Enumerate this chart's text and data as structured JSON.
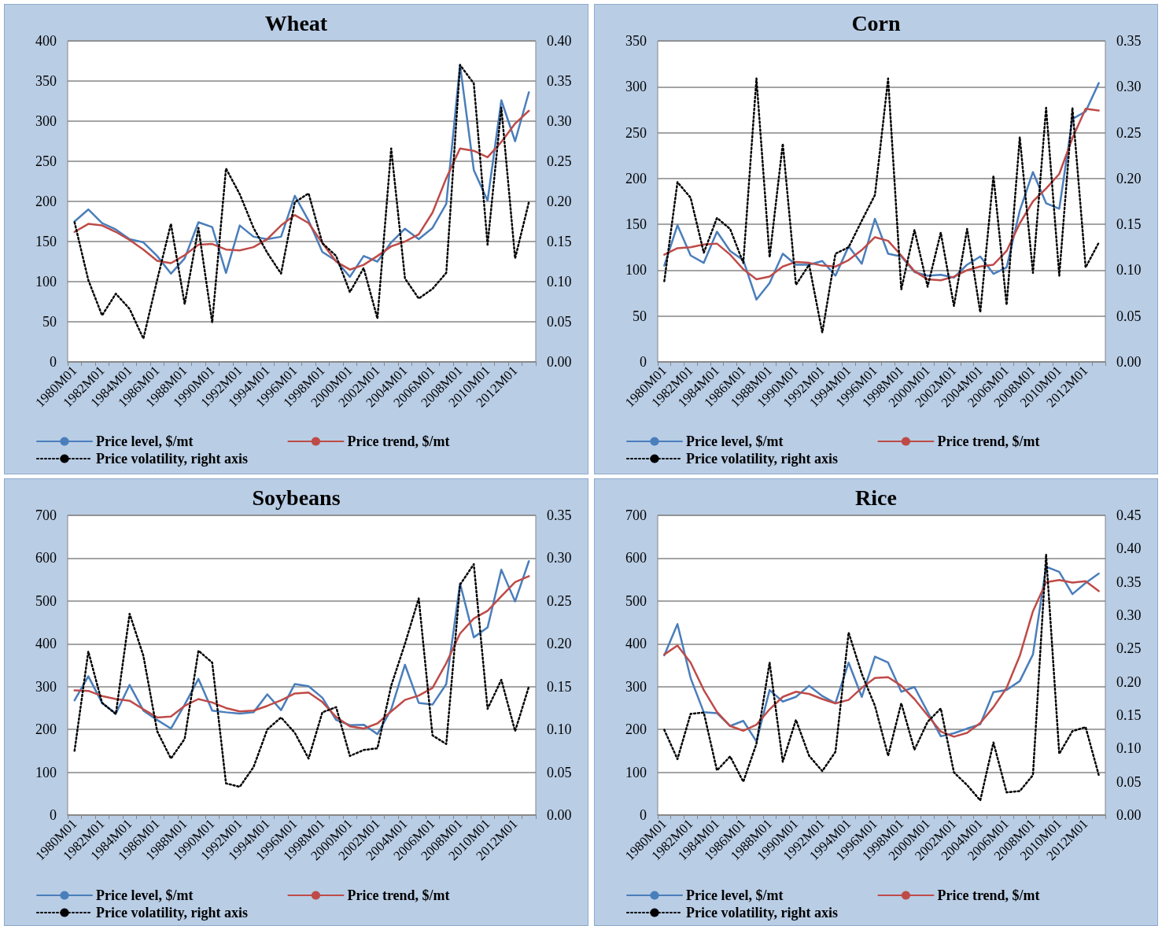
{
  "chart_data": [
    {
      "type": "line",
      "title": "Wheat",
      "categories": [
        "1980M01",
        null,
        "1982M01",
        null,
        "1984M01",
        null,
        "1986M01",
        null,
        "1988M01",
        null,
        "1990M01",
        null,
        "1992M01",
        null,
        "1994M01",
        null,
        "1996M01",
        null,
        "1998M01",
        null,
        "2000M01",
        null,
        "2002M01",
        null,
        "2004M01",
        null,
        "2006M01",
        null,
        "2008M01",
        null,
        "2010M01",
        null,
        "2012M01",
        null
      ],
      "ylim": [
        0,
        400
      ],
      "yticks": [
        0,
        50,
        100,
        150,
        200,
        250,
        300,
        350,
        400
      ],
      "y2lim": [
        0,
        0.4
      ],
      "y2ticks": [
        {
          "value": 0,
          "label": "0.00"
        },
        {
          "value": 0.05,
          "label": "0.05"
        },
        {
          "value": 0.1,
          "label": "0.10"
        },
        {
          "value": 0.15,
          "label": "0.15"
        },
        {
          "value": 0.2,
          "label": "0.20"
        },
        {
          "value": 0.25,
          "label": "0.25"
        },
        {
          "value": 0.3,
          "label": "0.30"
        },
        {
          "value": 0.35,
          "label": "0.35"
        },
        {
          "value": 0.4,
          "label": "0.40"
        }
      ],
      "grid": "y",
      "legend": "bottom",
      "marker": "none",
      "series": [
        {
          "name": "Price level, $/mt",
          "color": "#4a7ebb",
          "line_style": "solid",
          "values": [
            175,
            190,
            173,
            165,
            153,
            149,
            132,
            110,
            129,
            174,
            168,
            111,
            170,
            156,
            153,
            156,
            207,
            176,
            137,
            126,
            106,
            132,
            125,
            149,
            166,
            153,
            167,
            197,
            370,
            239,
            201,
            326,
            275,
            336
          ]
        },
        {
          "name": "Price trend, $/mt",
          "color": "#be4b48",
          "line_style": "solid",
          "values": [
            162,
            172,
            170,
            162,
            152,
            140,
            126,
            123,
            133,
            146,
            147,
            140,
            139,
            143,
            153,
            170,
            183,
            173,
            148,
            125,
            115,
            121,
            132,
            144,
            150,
            159,
            186,
            229,
            266,
            263,
            255,
            274,
            297,
            313
          ]
        },
        {
          "name": "Price volatility, right axis",
          "color": "#000000",
          "line_style": "dotted",
          "axis": "y2",
          "values": [
            0.174,
            0.102,
            0.058,
            0.085,
            0.066,
            0.029,
            0.102,
            0.172,
            0.072,
            0.167,
            0.049,
            0.241,
            0.209,
            0.167,
            0.136,
            0.11,
            0.199,
            0.21,
            0.148,
            0.132,
            0.087,
            0.117,
            0.054,
            0.266,
            0.104,
            0.079,
            0.091,
            0.111,
            0.37,
            0.347,
            0.146,
            0.317,
            0.129,
            0.199
          ]
        }
      ]
    },
    {
      "type": "line",
      "title": "Corn",
      "categories": [
        "1980M01",
        null,
        "1982M01",
        null,
        "1984M01",
        null,
        "1986M01",
        null,
        "1988M01",
        null,
        "1990M01",
        null,
        "1992M01",
        null,
        "1994M01",
        null,
        "1996M01",
        null,
        "1998M01",
        null,
        "2000M01",
        null,
        "2002M01",
        null,
        "2004M01",
        null,
        "2006M01",
        null,
        "2008M01",
        null,
        "2010M01",
        null,
        "2012M01",
        null
      ],
      "ylim": [
        0,
        350
      ],
      "yticks": [
        0,
        50,
        100,
        150,
        200,
        250,
        300,
        350
      ],
      "y2lim": [
        0,
        0.35
      ],
      "y2ticks": [
        {
          "value": 0,
          "label": "0.00"
        },
        {
          "value": 0.05,
          "label": "0.05"
        },
        {
          "value": 0.1,
          "label": "0.10"
        },
        {
          "value": 0.15,
          "label": "0.15"
        },
        {
          "value": 0.2,
          "label": "0.20"
        },
        {
          "value": 0.25,
          "label": "0.25"
        },
        {
          "value": 0.3,
          "label": "0.30"
        },
        {
          "value": 0.35,
          "label": "0.35"
        }
      ],
      "grid": "y",
      "legend": "bottom",
      "marker": "none",
      "series": [
        {
          "name": "Price level, $/mt",
          "color": "#4a7ebb",
          "line_style": "solid",
          "values": [
            105,
            149,
            116,
            108,
            142,
            121,
            111,
            68,
            86,
            118,
            106,
            106,
            110,
            94,
            126,
            107,
            156,
            118,
            115,
            98,
            94,
            95,
            92,
            106,
            115,
            96,
            103,
            165,
            207,
            173,
            167,
            265,
            273,
            304
          ]
        },
        {
          "name": "Price trend, $/mt",
          "color": "#be4b48",
          "line_style": "solid",
          "values": [
            117,
            124,
            125,
            128,
            129,
            117,
            101,
            90,
            93,
            104,
            109,
            108,
            105,
            104,
            111,
            122,
            136,
            132,
            116,
            99,
            90,
            89,
            93,
            100,
            104,
            106,
            121,
            151,
            175,
            189,
            205,
            244,
            276,
            274
          ]
        },
        {
          "name": "Price volatility, right axis",
          "color": "#000000",
          "line_style": "dotted",
          "axis": "y2",
          "values": [
            0.088,
            0.196,
            0.179,
            0.119,
            0.157,
            0.145,
            0.108,
            0.309,
            0.114,
            0.238,
            0.084,
            0.106,
            0.032,
            0.118,
            0.125,
            0.154,
            0.182,
            0.309,
            0.079,
            0.144,
            0.082,
            0.141,
            0.061,
            0.145,
            0.054,
            0.203,
            0.062,
            0.245,
            0.097,
            0.277,
            0.094,
            0.277,
            0.103,
            0.13
          ]
        }
      ]
    },
    {
      "type": "line",
      "title": "Soybeans",
      "categories": [
        "1980M01",
        null,
        "1982M01",
        null,
        "1984M01",
        null,
        "1986M01",
        null,
        "1988M01",
        null,
        "1990M01",
        null,
        "1992M01",
        null,
        "1994M01",
        null,
        "1996M01",
        null,
        "1998M01",
        null,
        "2000M01",
        null,
        "2002M01",
        null,
        "2004M01",
        null,
        "2006M01",
        null,
        "2008M01",
        null,
        "2010M01",
        null,
        "2012M01",
        null
      ],
      "ylim": [
        0,
        700
      ],
      "yticks": [
        0,
        100,
        200,
        300,
        400,
        500,
        600,
        700
      ],
      "y2lim": [
        0,
        0.35
      ],
      "y2ticks": [
        {
          "value": 0,
          "label": "0.00"
        },
        {
          "value": 0.05,
          "label": "0.05"
        },
        {
          "value": 0.1,
          "label": "0.10"
        },
        {
          "value": 0.15,
          "label": "0.15"
        },
        {
          "value": 0.2,
          "label": "0.20"
        },
        {
          "value": 0.25,
          "label": "0.25"
        },
        {
          "value": 0.3,
          "label": "0.30"
        },
        {
          "value": 0.35,
          "label": "0.35"
        }
      ],
      "grid": "y",
      "legend": "bottom",
      "marker": "none",
      "series": [
        {
          "name": "Price level, $/mt",
          "color": "#4a7ebb",
          "line_style": "solid",
          "values": [
            268,
            324,
            262,
            237,
            304,
            244,
            222,
            202,
            258,
            318,
            244,
            240,
            237,
            240,
            282,
            245,
            306,
            301,
            274,
            222,
            210,
            211,
            189,
            247,
            351,
            262,
            258,
            306,
            541,
            415,
            438,
            573,
            499,
            593
          ]
        },
        {
          "name": "Price trend, $/mt",
          "color": "#be4b48",
          "line_style": "solid",
          "values": [
            291,
            290,
            278,
            271,
            267,
            247,
            228,
            230,
            255,
            271,
            263,
            250,
            242,
            244,
            255,
            268,
            284,
            286,
            264,
            229,
            207,
            202,
            214,
            242,
            269,
            279,
            297,
            355,
            424,
            459,
            477,
            511,
            544,
            558
          ]
        },
        {
          "name": "Price volatility, right axis",
          "color": "#000000",
          "line_style": "dotted",
          "axis": "y2",
          "values": [
            0.075,
            0.191,
            0.131,
            0.118,
            0.235,
            0.186,
            0.098,
            0.066,
            0.089,
            0.192,
            0.178,
            0.037,
            0.033,
            0.056,
            0.1,
            0.114,
            0.096,
            0.066,
            0.12,
            0.126,
            0.069,
            0.076,
            0.078,
            0.151,
            0.2,
            0.253,
            0.093,
            0.083,
            0.269,
            0.293,
            0.124,
            0.158,
            0.098,
            0.15
          ]
        }
      ]
    },
    {
      "type": "line",
      "title": "Rice",
      "categories": [
        "1980M01",
        null,
        "1982M01",
        null,
        "1984M01",
        null,
        "1986M01",
        null,
        "1988M01",
        null,
        "1990M01",
        null,
        "1992M01",
        null,
        "1994M01",
        null,
        "1996M01",
        null,
        "1998M01",
        null,
        "2000M01",
        null,
        "2002M01",
        null,
        "2004M01",
        null,
        "2006M01",
        null,
        "2008M01",
        null,
        "2010M01",
        null,
        "2012M01",
        null
      ],
      "ylim": [
        0,
        700
      ],
      "yticks": [
        0,
        100,
        200,
        300,
        400,
        500,
        600,
        700
      ],
      "y2lim": [
        0,
        0.45
      ],
      "y2ticks": [
        {
          "value": 0,
          "label": "0.00"
        },
        {
          "value": 0.05,
          "label": "0.05"
        },
        {
          "value": 0.1,
          "label": "0.10"
        },
        {
          "value": 0.15,
          "label": "0.15"
        },
        {
          "value": 0.2,
          "label": "0.20"
        },
        {
          "value": 0.25,
          "label": "0.25"
        },
        {
          "value": 0.3,
          "label": "0.30"
        },
        {
          "value": 0.35,
          "label": "0.35"
        },
        {
          "value": 0.4,
          "label": "0.40"
        },
        {
          "value": 0.45,
          "label": "0.45"
        }
      ],
      "grid": "y",
      "legend": "bottom",
      "marker": "none",
      "series": [
        {
          "name": "Price level, $/mt",
          "color": "#4a7ebb",
          "line_style": "solid",
          "values": [
            373,
            446,
            320,
            240,
            238,
            208,
            220,
            172,
            292,
            265,
            276,
            302,
            278,
            261,
            356,
            276,
            370,
            356,
            288,
            299,
            241,
            184,
            191,
            202,
            212,
            287,
            292,
            313,
            375,
            580,
            568,
            516,
            542,
            564
          ]
        },
        {
          "name": "Price trend, $/mt",
          "color": "#be4b48",
          "line_style": "solid",
          "values": [
            375,
            396,
            356,
            292,
            241,
            208,
            197,
            211,
            247,
            276,
            288,
            283,
            271,
            261,
            269,
            297,
            320,
            322,
            302,
            271,
            233,
            195,
            183,
            192,
            215,
            252,
            297,
            372,
            476,
            544,
            549,
            543,
            546,
            523
          ]
        },
        {
          "name": "Price volatility, right axis",
          "color": "#000000",
          "line_style": "dotted",
          "axis": "y2",
          "values": [
            0.128,
            0.084,
            0.152,
            0.154,
            0.067,
            0.088,
            0.05,
            0.107,
            0.229,
            0.08,
            0.143,
            0.089,
            0.066,
            0.095,
            0.274,
            0.212,
            0.164,
            0.089,
            0.168,
            0.098,
            0.14,
            0.16,
            0.064,
            0.045,
            0.022,
            0.109,
            0.034,
            0.036,
            0.06,
            0.391,
            0.092,
            0.126,
            0.132,
            0.06
          ]
        }
      ]
    }
  ]
}
